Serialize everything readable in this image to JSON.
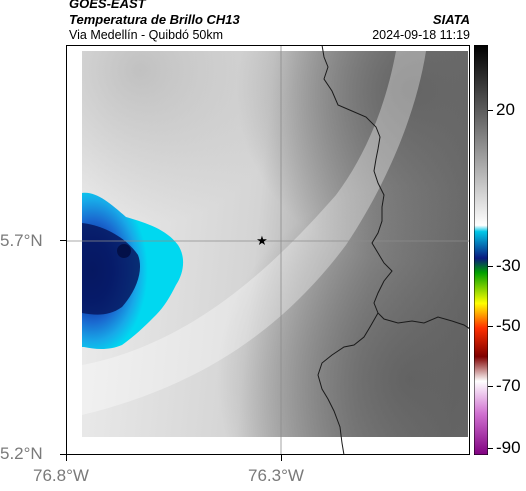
{
  "header": {
    "product": "GOES-EAST",
    "title": "Temperatura de Brillo CH13",
    "source": "SIATA",
    "subtitle": "Via Medellín - Quibdó 50km",
    "timestamp": "2024-09-18 11:19"
  },
  "map": {
    "lat_ticks": [
      "5.7°N",
      "5.2°N"
    ],
    "lon_ticks": [
      "76.8°W",
      "76.3°W"
    ],
    "marker_symbol": "★",
    "colors": {
      "frame": "#000000",
      "grid": "#8c8c8c",
      "boundary": "#1a1a1a",
      "cold_cloud_core": "#0a1f78",
      "cloud_edge": "#00d8f0"
    }
  },
  "colorbar": {
    "ticks": [
      "20",
      "-30",
      "-50",
      "-70",
      "-90"
    ],
    "colors": [
      "#000000",
      "#ffffff",
      "#00c8e8",
      "#0a1a80",
      "#00a000",
      "#ffff00",
      "#ff0000",
      "#800000",
      "#ffffff",
      "#d070d0",
      "#800080"
    ]
  }
}
